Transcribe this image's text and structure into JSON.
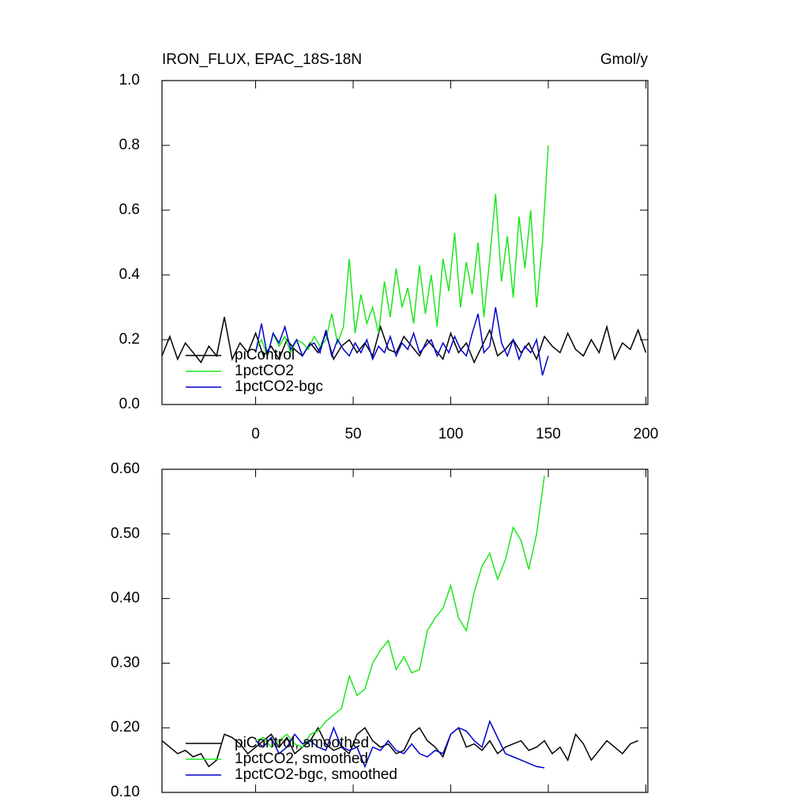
{
  "chart_data": [
    {
      "type": "line",
      "title": "IRON_FLUX, EPAC_18S-18N",
      "units_label": "Gmol/y",
      "xlim": [
        -48,
        201
      ],
      "xticks": [
        0,
        50,
        100,
        150,
        200
      ],
      "ylim": [
        0,
        1
      ],
      "yticks": [
        {
          "value": 0,
          "label": "0.0"
        },
        0.2,
        0.4,
        0.6,
        0.8,
        {
          "value": 1,
          "label": "1.0"
        }
      ],
      "legend": "lower left",
      "series": [
        {
          "name": "piControl",
          "color": "#000000",
          "x": [
            -48,
            -44,
            -40,
            -36,
            -32,
            -28,
            -24,
            -20,
            -16,
            -12,
            -8,
            -4,
            0,
            4,
            8,
            12,
            16,
            20,
            24,
            28,
            32,
            36,
            40,
            44,
            48,
            52,
            56,
            60,
            64,
            68,
            72,
            76,
            80,
            84,
            88,
            92,
            96,
            100,
            104,
            108,
            112,
            116,
            120,
            124,
            128,
            132,
            136,
            140,
            144,
            148,
            152,
            156,
            160,
            164,
            168,
            172,
            176,
            180,
            184,
            188,
            192,
            196,
            200
          ],
          "values": [
            0.15,
            0.21,
            0.14,
            0.19,
            0.16,
            0.13,
            0.18,
            0.15,
            0.27,
            0.14,
            0.19,
            0.16,
            0.22,
            0.15,
            0.18,
            0.14,
            0.2,
            0.17,
            0.15,
            0.19,
            0.16,
            0.22,
            0.14,
            0.18,
            0.2,
            0.16,
            0.19,
            0.15,
            0.24,
            0.17,
            0.16,
            0.21,
            0.18,
            0.15,
            0.2,
            0.17,
            0.14,
            0.22,
            0.16,
            0.19,
            0.13,
            0.18,
            0.23,
            0.15,
            0.17,
            0.2,
            0.16,
            0.19,
            0.14,
            0.21,
            0.18,
            0.16,
            0.22,
            0.17,
            0.15,
            0.2,
            0.16,
            0.24,
            0.14,
            0.19,
            0.17,
            0.23,
            0.16
          ]
        },
        {
          "name": "1pctCO2",
          "color": "#1ee61e",
          "x": [
            0,
            3,
            6,
            9,
            12,
            15,
            18,
            21,
            24,
            27,
            30,
            33,
            36,
            39,
            42,
            45,
            48,
            51,
            54,
            57,
            60,
            63,
            66,
            69,
            72,
            75,
            78,
            81,
            84,
            87,
            90,
            93,
            96,
            99,
            102,
            105,
            108,
            111,
            114,
            117,
            120,
            123,
            126,
            129,
            132,
            135,
            138,
            141,
            144,
            147,
            150
          ],
          "values": [
            0.17,
            0.2,
            0.15,
            0.22,
            0.18,
            0.21,
            0.16,
            0.2,
            0.19,
            0.17,
            0.21,
            0.18,
            0.2,
            0.28,
            0.19,
            0.24,
            0.45,
            0.22,
            0.34,
            0.25,
            0.3,
            0.22,
            0.38,
            0.27,
            0.42,
            0.3,
            0.36,
            0.25,
            0.43,
            0.28,
            0.4,
            0.24,
            0.45,
            0.35,
            0.53,
            0.3,
            0.44,
            0.34,
            0.5,
            0.27,
            0.45,
            0.65,
            0.38,
            0.52,
            0.33,
            0.58,
            0.42,
            0.6,
            0.3,
            0.5,
            0.8
          ]
        },
        {
          "name": "1pctCO2-bgc",
          "color": "#0000cc",
          "x": [
            0,
            3,
            6,
            9,
            12,
            15,
            18,
            21,
            24,
            27,
            30,
            33,
            36,
            39,
            42,
            45,
            48,
            51,
            54,
            57,
            60,
            63,
            66,
            69,
            72,
            75,
            78,
            81,
            84,
            87,
            90,
            93,
            96,
            99,
            102,
            105,
            108,
            111,
            114,
            117,
            120,
            123,
            126,
            129,
            132,
            135,
            138,
            141,
            144,
            147,
            150
          ],
          "values": [
            0.16,
            0.25,
            0.15,
            0.22,
            0.19,
            0.24,
            0.17,
            0.2,
            0.15,
            0.18,
            0.19,
            0.16,
            0.23,
            0.15,
            0.2,
            0.17,
            0.15,
            0.19,
            0.16,
            0.2,
            0.14,
            0.18,
            0.16,
            0.21,
            0.15,
            0.19,
            0.17,
            0.22,
            0.16,
            0.18,
            0.2,
            0.15,
            0.19,
            0.16,
            0.21,
            0.17,
            0.15,
            0.22,
            0.28,
            0.16,
            0.18,
            0.3,
            0.19,
            0.15,
            0.2,
            0.14,
            0.18,
            0.16,
            0.2,
            0.09,
            0.15
          ]
        }
      ]
    },
    {
      "type": "line",
      "xlim": [
        -48,
        201
      ],
      "xticks": [
        0,
        50,
        100,
        150,
        200
      ],
      "ylim": [
        0.1,
        0.6
      ],
      "yticks": [
        {
          "value": 0.1,
          "label": "0.10"
        },
        {
          "value": 0.2,
          "label": "0.20"
        },
        {
          "value": 0.3,
          "label": "0.30"
        },
        {
          "value": 0.4,
          "label": "0.40"
        },
        {
          "value": 0.5,
          "label": "0.50"
        },
        {
          "value": 0.6,
          "label": "0.60"
        }
      ],
      "legend": "lower left",
      "series": [
        {
          "name": "piControl, smoothed",
          "color": "#000000",
          "x": [
            -48,
            -44,
            -40,
            -36,
            -32,
            -28,
            -24,
            -20,
            -16,
            -12,
            -8,
            -4,
            0,
            4,
            8,
            12,
            16,
            20,
            24,
            28,
            32,
            36,
            40,
            44,
            48,
            52,
            56,
            60,
            64,
            68,
            72,
            76,
            80,
            84,
            88,
            92,
            96,
            100,
            104,
            108,
            112,
            116,
            120,
            124,
            128,
            132,
            136,
            140,
            144,
            148,
            152,
            156,
            160,
            164,
            168,
            172,
            176,
            180,
            184,
            188,
            192,
            196
          ],
          "values": [
            0.18,
            0.17,
            0.16,
            0.165,
            0.155,
            0.16,
            0.14,
            0.15,
            0.19,
            0.185,
            0.175,
            0.16,
            0.17,
            0.18,
            0.19,
            0.17,
            0.185,
            0.16,
            0.17,
            0.18,
            0.2,
            0.175,
            0.165,
            0.17,
            0.16,
            0.19,
            0.2,
            0.18,
            0.17,
            0.175,
            0.16,
            0.165,
            0.19,
            0.2,
            0.18,
            0.17,
            0.155,
            0.19,
            0.2,
            0.17,
            0.175,
            0.165,
            0.18,
            0.16,
            0.17,
            0.175,
            0.18,
            0.165,
            0.17,
            0.18,
            0.16,
            0.17,
            0.15,
            0.19,
            0.175,
            0.15,
            0.165,
            0.18,
            0.17,
            0.16,
            0.175,
            0.18
          ]
        },
        {
          "name": "1pctCO2, smoothed",
          "color": "#1ee61e",
          "x": [
            0,
            4,
            8,
            12,
            16,
            20,
            24,
            28,
            32,
            36,
            40,
            44,
            48,
            52,
            56,
            60,
            64,
            68,
            72,
            76,
            80,
            84,
            88,
            92,
            96,
            100,
            104,
            108,
            112,
            116,
            120,
            124,
            128,
            132,
            136,
            140,
            144,
            148
          ],
          "values": [
            0.18,
            0.185,
            0.17,
            0.18,
            0.19,
            0.175,
            0.17,
            0.19,
            0.195,
            0.21,
            0.22,
            0.23,
            0.28,
            0.25,
            0.26,
            0.3,
            0.32,
            0.335,
            0.29,
            0.31,
            0.285,
            0.29,
            0.35,
            0.37,
            0.385,
            0.42,
            0.37,
            0.35,
            0.41,
            0.45,
            0.47,
            0.43,
            0.46,
            0.51,
            0.49,
            0.445,
            0.5,
            0.59
          ]
        },
        {
          "name": "1pctCO2-bgc, smoothed",
          "color": "#0000cc",
          "x": [
            0,
            4,
            8,
            12,
            16,
            20,
            24,
            28,
            32,
            36,
            40,
            44,
            48,
            52,
            56,
            60,
            64,
            68,
            72,
            76,
            80,
            84,
            88,
            92,
            96,
            100,
            104,
            108,
            112,
            116,
            120,
            124,
            128,
            132,
            136,
            140,
            144,
            148
          ],
          "values": [
            0.18,
            0.17,
            0.185,
            0.16,
            0.17,
            0.19,
            0.175,
            0.18,
            0.17,
            0.165,
            0.2,
            0.17,
            0.165,
            0.17,
            0.14,
            0.17,
            0.165,
            0.18,
            0.165,
            0.16,
            0.175,
            0.16,
            0.155,
            0.165,
            0.16,
            0.19,
            0.2,
            0.195,
            0.18,
            0.17,
            0.21,
            0.185,
            0.16,
            0.155,
            0.15,
            0.145,
            0.14,
            0.138
          ]
        }
      ]
    }
  ]
}
